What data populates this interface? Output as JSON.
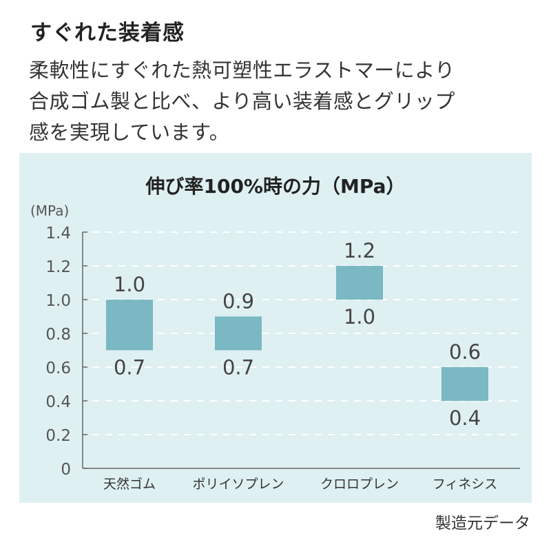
{
  "heading": "すぐれた装着感",
  "description": [
    "柔軟性にすぐれた熱可塑性エラストマーにより",
    "合成ゴム製と比べ、より高い装着感とグリップ",
    "感を実現しています。"
  ],
  "source": "製造元データ",
  "colors": {
    "panel_bg": "#dff0f2",
    "bar": "#7ab8c4",
    "axis": "#666666",
    "grid": "#ffffff"
  },
  "chart_data": {
    "type": "bar",
    "subtype": "floating-range",
    "title": "伸び率100%時の力（MPa）",
    "ylabel": "(MPa)",
    "xlabel": "",
    "ylim": [
      0,
      1.4
    ],
    "yticks": [
      "0",
      "0.2",
      "0.4",
      "0.6",
      "0.8",
      "1.0",
      "1.2",
      "1.4"
    ],
    "grid": true,
    "categories": [
      "天然ゴム",
      "ポリイソプレン",
      "クロロプレン",
      "フィネシス"
    ],
    "low": [
      0.7,
      0.7,
      1.0,
      0.4
    ],
    "high": [
      1.0,
      0.9,
      1.2,
      0.6
    ],
    "low_labels": [
      "0.7",
      "0.7",
      "1.0",
      "0.4"
    ],
    "high_labels": [
      "1.0",
      "0.9",
      "1.2",
      "0.6"
    ]
  }
}
